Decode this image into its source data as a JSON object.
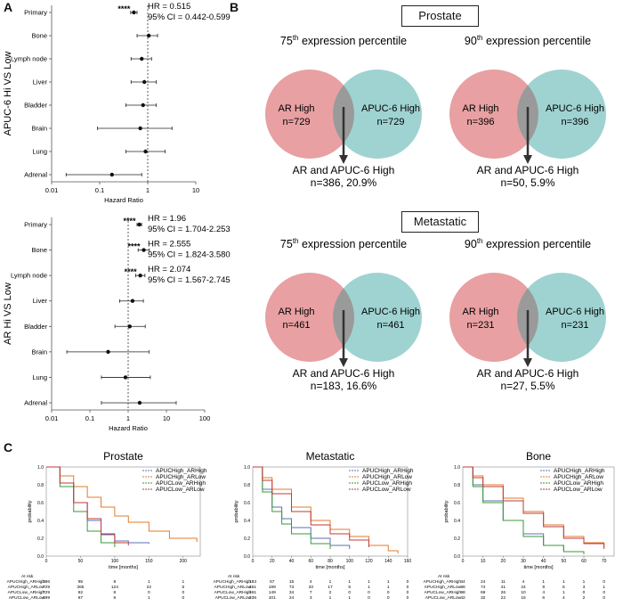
{
  "panel_labels": {
    "a": "A",
    "b": "B",
    "c": "C"
  },
  "chart_data": [
    {
      "type": "forest",
      "panel": "A-top",
      "ylabel": "APUC-6 Hi VS Low",
      "xlabel": "Hazard Ratio",
      "xscale": "log",
      "xlim": [
        0.01,
        10
      ],
      "xticks": [
        "0.01",
        "0.1",
        "1",
        "10"
      ],
      "reference_line": 1,
      "categories": [
        "Primary",
        "Bone",
        "Lymph node",
        "Liver",
        "Bladder",
        "Brain",
        "Lung",
        "Adrenal"
      ],
      "hr": [
        0.515,
        1.05,
        0.75,
        0.85,
        0.8,
        0.7,
        0.9,
        0.18
      ],
      "ci_low": [
        0.442,
        0.6,
        0.45,
        0.45,
        0.35,
        0.09,
        0.35,
        0.02
      ],
      "ci_high": [
        0.599,
        1.6,
        1.2,
        1.5,
        1.5,
        3.2,
        2.3,
        0.75
      ],
      "annotations": [
        {
          "row": "Primary",
          "stars": "****",
          "lines": [
            "HR = 0.515",
            "95% CI = 0.442-0.599"
          ]
        }
      ]
    },
    {
      "type": "forest",
      "panel": "A-bottom",
      "ylabel": "AR Hi VS Low",
      "xlabel": "Hazard Ratio",
      "xscale": "log",
      "xlim": [
        0.01,
        100
      ],
      "xticks": [
        "0.01",
        "0.1",
        "1",
        "10",
        "100"
      ],
      "reference_line": 1,
      "categories": [
        "Primary",
        "Bone",
        "Lymph node",
        "Liver",
        "Bladder",
        "Brain",
        "Lung",
        "Adrenal"
      ],
      "hr": [
        1.96,
        2.555,
        2.074,
        1.3,
        1.1,
        0.3,
        0.85,
        2.0
      ],
      "ci_low": [
        1.704,
        1.824,
        1.567,
        0.6,
        0.45,
        0.025,
        0.2,
        0.2
      ],
      "ci_high": [
        2.253,
        3.58,
        2.745,
        2.5,
        2.8,
        3.5,
        3.8,
        18
      ],
      "annotations": [
        {
          "row": "Primary",
          "stars": "****",
          "lines": [
            "HR = 1.96",
            "95% CI = 1.704-2.253"
          ]
        },
        {
          "row": "Bone",
          "stars": "****",
          "lines": [
            "HR = 2.555",
            "95% CI = 1.824-3.580"
          ]
        },
        {
          "row": "Lymph node",
          "stars": "****",
          "lines": [
            "HR = 2.074",
            "95% CI = 1.567-2.745"
          ]
        }
      ]
    },
    {
      "type": "venn",
      "group": "Prostate",
      "title_prefix": "75",
      "title_sup": "th",
      "title_suffix": " expression percentile",
      "left_label": "AR High",
      "left_n": "n=729",
      "right_label": "APUC-6 High",
      "right_n": "n=729",
      "overlap_label": "AR and APUC-6 High",
      "overlap_n": "n=386, 20.9%"
    },
    {
      "type": "venn",
      "group": "Prostate",
      "title_prefix": "90",
      "title_sup": "th",
      "title_suffix": " expression percentile",
      "left_label": "AR High",
      "left_n": "n=396",
      "right_label": "APUC-6 High",
      "right_n": "n=396",
      "overlap_label": "AR and APUC-6 High",
      "overlap_n": "n=50, 5.9%"
    },
    {
      "type": "venn",
      "group": "Metastatic",
      "title_prefix": "75",
      "title_sup": "th",
      "title_suffix": " expression percentile",
      "left_label": "AR High",
      "left_n": "n=461",
      "right_label": "APUC-6 High",
      "right_n": "n=461",
      "overlap_label": "AR and APUC-6 High",
      "overlap_n": "n=183, 16.6%"
    },
    {
      "type": "venn",
      "group": "Metastatic",
      "title_prefix": "90",
      "title_sup": "th",
      "title_suffix": " expression percentile",
      "left_label": "AR High",
      "left_n": "n=231",
      "right_label": "APUC-6 High",
      "right_n": "n=231",
      "overlap_label": "AR and APUC-6 High",
      "overlap_n": "n=27, 5.5%"
    },
    {
      "type": "line",
      "subtype": "kaplan-meier",
      "title": "Prostate",
      "xlabel": "time [months]",
      "ylabel": "probability",
      "xlim": [
        0,
        225
      ],
      "ylim": [
        0,
        1.0
      ],
      "xticks": [
        0,
        50,
        100,
        150,
        200
      ],
      "yticks": [
        0.0,
        0.2,
        0.4,
        0.6,
        0.8,
        1.0
      ],
      "legend_position": "top-right",
      "series": [
        {
          "name": "APUCHigh_ARHigh",
          "color": "#5b6fb5",
          "x": [
            0,
            20,
            40,
            60,
            80,
            100,
            120,
            150
          ],
          "y": [
            1.0,
            0.82,
            0.6,
            0.4,
            0.24,
            0.17,
            0.15,
            0.14
          ]
        },
        {
          "name": "APUCHigh_ARLow",
          "color": "#e07b2a",
          "x": [
            0,
            20,
            40,
            60,
            80,
            100,
            120,
            150,
            180,
            220
          ],
          "y": [
            1.0,
            0.9,
            0.78,
            0.66,
            0.55,
            0.45,
            0.38,
            0.28,
            0.2,
            0.16
          ]
        },
        {
          "name": "APUCLow_ARHigh",
          "color": "#3a9a3a",
          "x": [
            0,
            20,
            40,
            60,
            80,
            100
          ],
          "y": [
            1.0,
            0.78,
            0.5,
            0.28,
            0.15,
            0.1
          ]
        },
        {
          "name": "APUCLow_ARLow",
          "color": "#c03a3a",
          "x": [
            0,
            20,
            40,
            60,
            80,
            100,
            120
          ],
          "y": [
            1.0,
            0.82,
            0.6,
            0.42,
            0.25,
            0.15,
            0.12
          ]
        }
      ],
      "at_risk": {
        "header": "At risk",
        "rows": [
          {
            "label": "APUCHigh_ARHigh",
            "values": [
              "386",
              "95",
              "8",
              "1",
              "1"
            ]
          },
          {
            "label": "APUCHigh_ARLow",
            "values": [
              "729",
              "365",
              "124",
              "22",
              "5"
            ]
          },
          {
            "label": "APUCLow_ARHigh",
            "values": [
              "729",
              "82",
              "8",
              "0",
              "0"
            ]
          },
          {
            "label": "APUCLow_ARLow",
            "values": [
              "499",
              "67",
              "6",
              "1",
              "0"
            ]
          }
        ]
      }
    },
    {
      "type": "line",
      "subtype": "kaplan-meier",
      "title": "Metastatic",
      "xlabel": "time [months]",
      "ylabel": "probability",
      "xlim": [
        0,
        160
      ],
      "ylim": [
        0,
        1.0
      ],
      "xticks": [
        0,
        20,
        40,
        60,
        80,
        100,
        120,
        140,
        160
      ],
      "yticks": [
        0.0,
        0.2,
        0.4,
        0.6,
        0.8,
        1.0
      ],
      "legend_position": "top-right",
      "series": [
        {
          "name": "APUCHigh_ARHigh",
          "color": "#5b6fb5",
          "x": [
            0,
            10,
            20,
            30,
            40,
            60,
            80,
            100
          ],
          "y": [
            1.0,
            0.75,
            0.55,
            0.42,
            0.32,
            0.2,
            0.12,
            0.08
          ]
        },
        {
          "name": "APUCHigh_ARLow",
          "color": "#e07b2a",
          "x": [
            0,
            10,
            20,
            40,
            60,
            80,
            100,
            120,
            140,
            150
          ],
          "y": [
            1.0,
            0.88,
            0.75,
            0.55,
            0.4,
            0.3,
            0.22,
            0.12,
            0.06,
            0.03
          ]
        },
        {
          "name": "APUCLow_ARHigh",
          "color": "#3a9a3a",
          "x": [
            0,
            10,
            20,
            30,
            40,
            60,
            80
          ],
          "y": [
            1.0,
            0.72,
            0.5,
            0.36,
            0.25,
            0.14,
            0.08
          ]
        },
        {
          "name": "APUCLow_ARLow",
          "color": "#c03a3a",
          "x": [
            0,
            10,
            20,
            40,
            60,
            80,
            100,
            120
          ],
          "y": [
            1.0,
            0.85,
            0.7,
            0.5,
            0.35,
            0.25,
            0.18,
            0.1
          ]
        }
      ],
      "at_risk": {
        "header": "At risk",
        "rows": [
          {
            "label": "APUCHigh_ARHigh",
            "values": [
              "183",
              "57",
              "15",
              "4",
              "1",
              "1",
              "1",
              "1",
              "0"
            ]
          },
          {
            "label": "APUCHigh_ARLow",
            "values": [
              "461",
              "199",
              "73",
              "33",
              "17",
              "5",
              "1",
              "1",
              "0"
            ]
          },
          {
            "label": "APUCLow_ARHigh",
            "values": [
              "461",
              "149",
              "34",
              "7",
              "2",
              "0",
              "0",
              "0",
              "0"
            ]
          },
          {
            "label": "APUCLow_ARLow",
            "values": [
              "236",
              "101",
              "24",
              "3",
              "1",
              "1",
              "0",
              "0",
              "0"
            ]
          }
        ]
      }
    },
    {
      "type": "line",
      "subtype": "kaplan-meier",
      "title": "Bone",
      "xlabel": "time [months]",
      "ylabel": "probability",
      "xlim": [
        0,
        75
      ],
      "ylim": [
        0,
        1.0
      ],
      "xticks": [
        0,
        10,
        20,
        30,
        40,
        50,
        60,
        70
      ],
      "yticks": [
        0.0,
        0.2,
        0.4,
        0.6,
        0.8,
        1.0
      ],
      "legend_position": "top-right",
      "series": [
        {
          "name": "APUCHigh_ARHigh",
          "color": "#5b6fb5",
          "x": [
            0,
            5,
            10,
            20,
            30,
            40,
            50
          ],
          "y": [
            1.0,
            0.8,
            0.62,
            0.4,
            0.25,
            0.12,
            0.06
          ]
        },
        {
          "name": "APUCHigh_ARLow",
          "color": "#e07b2a",
          "x": [
            0,
            5,
            10,
            20,
            30,
            40,
            50,
            60,
            70
          ],
          "y": [
            1.0,
            0.9,
            0.8,
            0.65,
            0.5,
            0.35,
            0.22,
            0.15,
            0.1
          ]
        },
        {
          "name": "APUCLow_ARHigh",
          "color": "#3a9a3a",
          "x": [
            0,
            5,
            10,
            20,
            30,
            40,
            50,
            60
          ],
          "y": [
            1.0,
            0.78,
            0.6,
            0.4,
            0.22,
            0.12,
            0.05,
            0.02
          ]
        },
        {
          "name": "APUCLow_ARLow",
          "color": "#c03a3a",
          "x": [
            0,
            5,
            10,
            20,
            30,
            40,
            50,
            60,
            70
          ],
          "y": [
            1.0,
            0.88,
            0.78,
            0.62,
            0.48,
            0.33,
            0.2,
            0.14,
            0.08
          ]
        }
      ],
      "at_risk": {
        "header": "At risk",
        "rows": [
          {
            "label": "APUCHigh_ARHigh",
            "values": [
              "34",
              "24",
              "11",
              "4",
              "1",
              "1",
              "1",
              "0"
            ]
          },
          {
            "label": "APUCHigh_ARLow",
            "values": [
              "98",
              "74",
              "41",
              "24",
              "9",
              "5",
              "3",
              "1"
            ]
          },
          {
            "label": "APUCLow_ARHigh",
            "values": [
              "98",
              "69",
              "26",
              "10",
              "4",
              "1",
              "0",
              "0"
            ]
          },
          {
            "label": "APUCLow_ARLow",
            "values": [
              "42",
              "32",
              "22",
              "15",
              "6",
              "4",
              "2",
              "0"
            ]
          }
        ]
      }
    }
  ],
  "venn_boxes": {
    "prostate": "Prostate",
    "metastatic": "Metastatic"
  },
  "colors": {
    "venn_left": "#e8a0a2",
    "venn_right": "#9fd3d2",
    "venn_overlap": "#9a9a9a"
  }
}
